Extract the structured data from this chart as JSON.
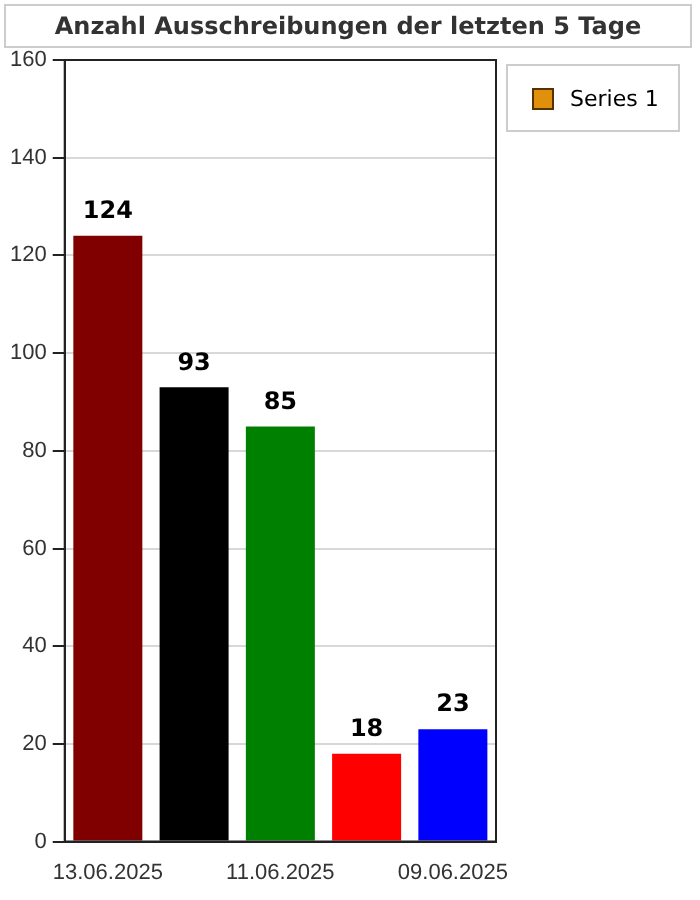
{
  "chart_data": {
    "type": "bar",
    "title": "Anzahl Ausschreibungen der letzten 5 Tage",
    "categories": [
      "13.06.2025",
      null,
      "11.06.2025",
      null,
      "09.06.2025"
    ],
    "series": [
      {
        "name": "Series 1",
        "color": "#e0900a",
        "colors": [
          "#800000",
          "#000000",
          "#008000",
          "#ff0000",
          "#0000ff"
        ],
        "values": [
          124,
          93,
          85,
          18,
          23
        ]
      }
    ],
    "ylim": [
      0,
      160
    ],
    "yticks": [
      0,
      20,
      40,
      60,
      80,
      100,
      120,
      140,
      160
    ],
    "grid": "y",
    "legend": "top right",
    "data_labels": true
  }
}
